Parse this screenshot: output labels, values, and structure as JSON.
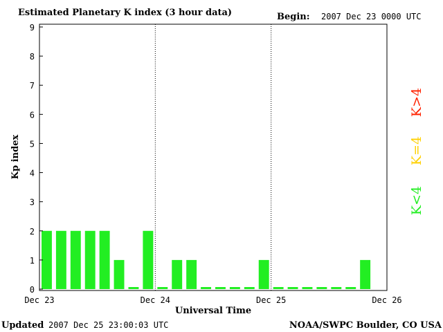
{
  "chart_data": {
    "type": "bar",
    "title": "Estimated Planetary K index (3 hour data)",
    "begin_label": "Begin:",
    "begin_value": "2007 Dec 23 0000 UTC",
    "xlabel": "Universal Time",
    "ylabel": "Kp index",
    "ylim": [
      0,
      9
    ],
    "yticks": [
      "0",
      "1",
      "2",
      "3",
      "4",
      "5",
      "6",
      "7",
      "8",
      "9"
    ],
    "xticks": [
      "Dec 23",
      "Dec 24",
      "Dec 25",
      "Dec 26"
    ],
    "day_separators": "dotted",
    "values": [
      2,
      2,
      2,
      2,
      2,
      1,
      0,
      2,
      0,
      1,
      1,
      0,
      0,
      0,
      0,
      1,
      0,
      0,
      0,
      0,
      0,
      0,
      1
    ],
    "legend": [
      {
        "label": "K<4",
        "color": "#22ee22"
      },
      {
        "label": "K=4",
        "color": "#ffd000"
      },
      {
        "label": "K>4",
        "color": "#ff2200"
      }
    ]
  },
  "footer": {
    "updated_label": "Updated",
    "updated_value": "2007 Dec 25 23:00:03 UTC",
    "source": "NOAA/SWPC Boulder, CO USA"
  },
  "colors": {
    "low": "#22ee22",
    "moderate": "#ffd000",
    "high": "#ff2200"
  }
}
